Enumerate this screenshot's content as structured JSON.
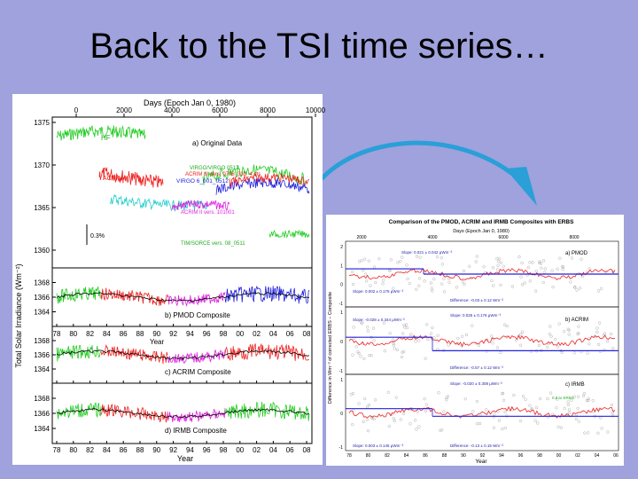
{
  "slide": {
    "title": "Back to the TSI time series…"
  },
  "colors": {
    "background": "#9fa2dc",
    "hf": "#22cc22",
    "acrim1": "#ee2222",
    "acrim2": "#dd22dd",
    "virgo": "#2222dd",
    "erbs": "#22cccc",
    "composite": "#000000",
    "arrow": "#2a9fd8"
  },
  "left_figure": {
    "top_axis_label": "Days (Epoch Jan 0, 1980)",
    "top_ticks": [
      "0",
      "2000",
      "4000",
      "6000",
      "8000",
      "10000"
    ],
    "y_label": "Total Solar Irradiance (Wm⁻²)",
    "x_label": "Year",
    "x_ticks": [
      "78",
      "80",
      "82",
      "84",
      "86",
      "88",
      "90",
      "92",
      "94",
      "96",
      "98",
      "00",
      "02",
      "04",
      "06",
      "08"
    ],
    "panel_a": {
      "title": "a) Original Data",
      "y_ticks": [
        "1375",
        "1370",
        "1365",
        "1360"
      ],
      "labels": [
        "HF",
        "ACRIM I",
        "VIRGO/VIRGO 0512",
        "ACRIM III vers. 0708_33b_4.dts",
        "VIRGO 6_001_0512",
        "ACRIM II vers. 101001",
        "TIM/SORCE vers. 08_0511",
        "0.3%"
      ]
    },
    "panel_b": {
      "title": "b) PMOD Composite",
      "y_ticks": [
        "1368",
        "1366",
        "1364"
      ]
    },
    "panel_c": {
      "title": "c) ACRIM Composite",
      "y_ticks": [
        "1368",
        "1366",
        "1364"
      ],
      "label": "Year"
    },
    "panel_d": {
      "title": "d) IRMB Composite",
      "y_ticks": [
        "1368",
        "1366",
        "1364"
      ]
    }
  },
  "right_figure": {
    "title": "Comparison of the PMOD, ACRIM and IRMB Composites with ERBS",
    "top_axis_label": "Days (Epoch Jan 0, 1980)",
    "top_ticks": [
      "2000",
      "4000",
      "6000",
      "8000"
    ],
    "y_label": "Difference in Wm⁻² of corrected ERBS – Composite",
    "x_label": "Year",
    "x_ticks": [
      "78",
      "80",
      "82",
      "84",
      "86",
      "88",
      "90",
      "92",
      "94",
      "96",
      "98",
      "00",
      "02",
      "04",
      "06"
    ],
    "panel_a": {
      "title": "a) PMOD",
      "y_ticks": [
        "2",
        "1",
        "0",
        "-1"
      ],
      "slope_1": "Slope: 0.021 ± 0.042 μWm⁻²",
      "slope_2": "Slope: 0.002 ± 0.175 μWm⁻²",
      "offset": "Difference: -0.03 ± 0.12 Wm⁻²"
    },
    "panel_b": {
      "title": "b) ACRIM",
      "y_ticks": [
        "1",
        "0",
        "-1"
      ],
      "slope_1": "Slope: -0.028 ± 0.344 μWm⁻²",
      "slope_2": "Slope: 0.025 ± 0.176 μWm⁻²",
      "offset": "Difference: -0.57 ± 0.12 Wm⁻²"
    },
    "panel_c": {
      "title": "c) IRMB",
      "y_ticks": [
        "1",
        "0",
        "-1"
      ],
      "slope_1": "Slope: -0.020 ± 0.308 μWm⁻²",
      "slope_2": "Slope: 0.003 ± 0.145 μWm⁻²",
      "offset": "Difference: -0.13 ± 0.15 Wm⁻²",
      "legend": "0.5 to ERBS"
    }
  }
}
